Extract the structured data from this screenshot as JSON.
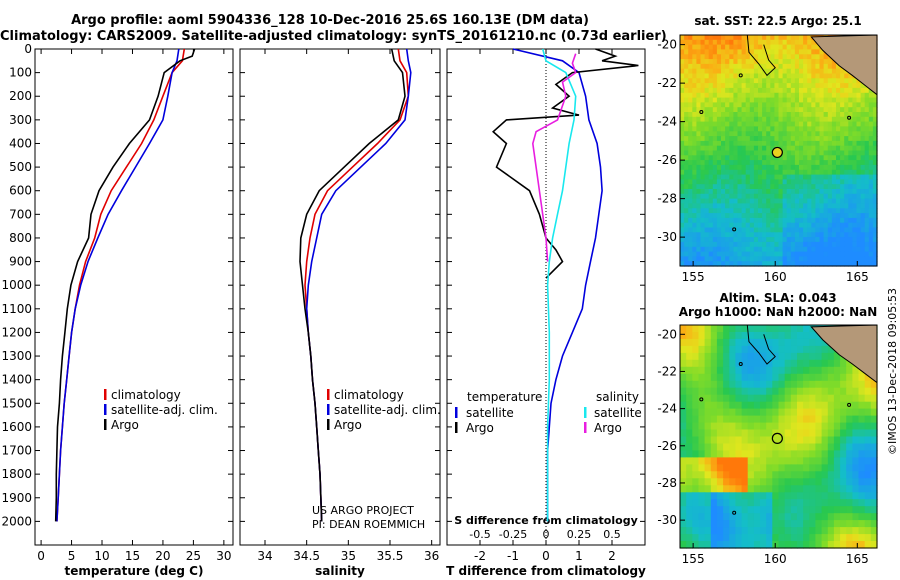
{
  "header": {
    "title_line1": "Argo profile: aoml 5904336_128 10-Dec-2016 25.6S 160.13E (DM data)",
    "title_line2": "Climatology: CARS2009. Satellite-adjusted climatology: synTS_20161210.nc (0.73d earlier)"
  },
  "credit": {
    "line1": "US ARGO PROJECT",
    "line2": "PI: DEAN ROEMMICH"
  },
  "timestamp": "©IMOS 13-Dec-2018 09:05:53",
  "colors": {
    "red": "#e00000",
    "blue": "#0000dd",
    "black": "#000000",
    "cyan": "#19e8ee",
    "magenta": "#e81ee0"
  },
  "chart_data": [
    {
      "type": "line",
      "name": "temperature-profile",
      "xlabel": "temperature (deg C)",
      "xlim": [
        -1,
        31.5
      ],
      "xticks": [
        0,
        5,
        10,
        15,
        20,
        25,
        30
      ],
      "ylim": [
        2100,
        0
      ],
      "yticks": [
        0,
        100,
        200,
        300,
        400,
        500,
        600,
        700,
        800,
        900,
        1000,
        1100,
        1200,
        1300,
        1400,
        1500,
        1600,
        1700,
        1800,
        1900,
        2000
      ],
      "legend": [
        "climatology",
        "satellite-adj. clim.",
        "Argo"
      ],
      "series": [
        {
          "name": "climatology",
          "color": "#e00000",
          "x": [
            23.5,
            23.2,
            21.5,
            20,
            18.5,
            16.5,
            14,
            11.5,
            9.8,
            8.8,
            7.3,
            6.3,
            5.6,
            5,
            4.6,
            4.2,
            3.8,
            3.5,
            3.2,
            3,
            2.8,
            2.6
          ],
          "y": [
            0,
            50,
            100,
            200,
            300,
            400,
            500,
            600,
            700,
            800,
            900,
            1000,
            1100,
            1200,
            1300,
            1400,
            1500,
            1600,
            1700,
            1800,
            1900,
            2000
          ]
        },
        {
          "name": "satellite-adj. clim.",
          "color": "#0000dd",
          "x": [
            22.6,
            22.3,
            21.5,
            20.8,
            20,
            17.8,
            15.5,
            13.2,
            11,
            9.3,
            7.7,
            6.5,
            5.6,
            5,
            4.6,
            4.2,
            3.8,
            3.5,
            3.2,
            3,
            2.8,
            2.6
          ],
          "y": [
            0,
            50,
            100,
            200,
            300,
            400,
            500,
            600,
            700,
            800,
            900,
            1000,
            1100,
            1200,
            1300,
            1400,
            1500,
            1600,
            1700,
            1800,
            1900,
            2000
          ]
        },
        {
          "name": "Argo",
          "color": "#000000",
          "x": [
            25.2,
            24.8,
            22.8,
            20.2,
            19.2,
            17.8,
            14.5,
            11.8,
            9.5,
            8.2,
            7.8,
            6,
            4.9,
            4.3,
            3.9,
            3.5,
            3.2,
            3,
            2.7,
            2.6,
            2.5,
            2.5,
            2.4
          ],
          "y": [
            0,
            30,
            50,
            100,
            200,
            300,
            400,
            500,
            600,
            700,
            800,
            900,
            1000,
            1100,
            1200,
            1300,
            1400,
            1500,
            1600,
            1700,
            1800,
            1900,
            2000
          ]
        }
      ]
    },
    {
      "type": "line",
      "name": "salinity-profile",
      "xlabel": "salinity",
      "xlim": [
        33.7,
        36.1
      ],
      "xticks": [
        34,
        34.5,
        35,
        35.5,
        36
      ],
      "ylim": [
        2100,
        0
      ],
      "legend": [
        "climatology",
        "satellite-adj. clim.",
        "Argo"
      ],
      "series": [
        {
          "name": "climatology",
          "color": "#e00000",
          "x": [
            35.6,
            35.62,
            35.7,
            35.72,
            35.62,
            35.35,
            35.05,
            34.75,
            34.6,
            34.54,
            34.5,
            34.48,
            34.5,
            34.52,
            34.55,
            34.57,
            34.6,
            34.62,
            34.64,
            34.66,
            34.68
          ],
          "y": [
            0,
            50,
            100,
            200,
            300,
            400,
            500,
            600,
            700,
            800,
            900,
            1000,
            1100,
            1200,
            1300,
            1400,
            1500,
            1600,
            1700,
            1800,
            2000
          ]
        },
        {
          "name": "satellite-adj. clim.",
          "color": "#0000dd",
          "x": [
            35.7,
            35.72,
            35.75,
            35.72,
            35.68,
            35.45,
            35.15,
            34.85,
            34.68,
            34.62,
            34.56,
            34.52,
            34.5,
            34.52,
            34.55,
            34.57,
            34.6,
            34.62,
            34.64,
            34.66,
            34.68
          ],
          "y": [
            0,
            50,
            100,
            200,
            300,
            400,
            500,
            600,
            700,
            800,
            900,
            1000,
            1100,
            1200,
            1300,
            1400,
            1500,
            1600,
            1700,
            1800,
            2000
          ]
        },
        {
          "name": "Argo",
          "color": "#000000",
          "x": [
            35.52,
            35.55,
            35.65,
            35.68,
            35.6,
            35.25,
            34.95,
            34.65,
            34.5,
            34.43,
            34.42,
            34.45,
            34.48,
            34.52,
            34.55,
            34.57,
            34.6,
            34.62,
            34.64,
            34.66,
            34.68
          ],
          "y": [
            0,
            50,
            100,
            200,
            300,
            400,
            500,
            600,
            700,
            800,
            900,
            1000,
            1100,
            1200,
            1300,
            1400,
            1500,
            1600,
            1700,
            1800,
            2000
          ]
        }
      ]
    },
    {
      "type": "line",
      "name": "difference-profile",
      "xlabel": "T difference from climatology",
      "xlim": [
        -3,
        3
      ],
      "xticks": [
        -2,
        -1,
        0,
        1,
        2
      ],
      "secondary_xlabel": "S difference from climatology",
      "secondary_xticks": [
        "-0.5",
        "-0.25",
        "0",
        "0.25",
        "0.5"
      ],
      "secondary_xtick_positions": [
        -2,
        -1,
        0,
        1,
        2
      ],
      "ylim": [
        2100,
        0
      ],
      "legend_groups": [
        {
          "title": "temperature",
          "items": [
            "satellite",
            "Argo"
          ]
        },
        {
          "title": "salinity",
          "items": [
            "satellite",
            "Argo"
          ]
        }
      ],
      "series": [
        {
          "name": "temperature satellite",
          "color": "#0000dd",
          "x": [
            -1,
            0.5,
            1,
            1.2,
            1.3,
            1.55,
            1.65,
            1.7,
            1.6,
            1.5,
            1.35,
            1.2,
            1.1,
            0.8,
            0.5,
            0.3,
            0.15,
            0.1,
            0.05,
            0.05,
            0.05,
            0.05
          ],
          "y": [
            0,
            50,
            100,
            200,
            300,
            400,
            500,
            600,
            700,
            800,
            900,
            1000,
            1100,
            1200,
            1300,
            1400,
            1500,
            1600,
            1700,
            1800,
            1900,
            2000
          ]
        },
        {
          "name": "temperature Argo",
          "color": "#000000",
          "x": [
            1.5,
            2.1,
            1.7,
            2.8,
            0.8,
            0.3,
            0.7,
            0.2,
            1,
            -1.2,
            -1.6,
            -1.2,
            -1.5,
            -0.5,
            -0.2,
            0,
            0.3,
            0.5,
            0
          ],
          "y": [
            0,
            30,
            50,
            70,
            100,
            150,
            200,
            250,
            280,
            300,
            350,
            400,
            500,
            600,
            700,
            800,
            850,
            900,
            970
          ]
        },
        {
          "name": "salinity satellite",
          "color": "#19e8ee",
          "x": [
            -0.1,
            0,
            0.6,
            0.9,
            0.85,
            0.7,
            0.6,
            0.5,
            0.35,
            0.2,
            0.1,
            0.05,
            0.1,
            0.1,
            0.05,
            0.05,
            0.05,
            0.05
          ],
          "y": [
            0,
            50,
            100,
            200,
            300,
            400,
            500,
            600,
            700,
            800,
            900,
            1000,
            1200,
            1400,
            1600,
            1700,
            1800,
            2000
          ]
        },
        {
          "name": "salinity Argo",
          "color": "#e81ee0",
          "x": [
            0.9,
            0.8,
            0.9,
            0.5,
            0.6,
            0.4,
            0.35,
            -0.3,
            -0.4,
            -0.3,
            -0.2,
            -0.1,
            0,
            0.05
          ],
          "y": [
            20,
            60,
            100,
            140,
            200,
            280,
            300,
            350,
            400,
            500,
            600,
            700,
            800,
            900
          ]
        }
      ]
    },
    {
      "type": "heatmap",
      "name": "sst-map",
      "title": "sat. SST: 22.5 Argo: 25.1",
      "xlim": [
        154.2,
        166.2
      ],
      "ylim": [
        -31.5,
        -19.5
      ],
      "xticks": [
        155,
        160,
        165
      ],
      "yticks": [
        -20,
        -22,
        -24,
        -26,
        -28,
        -30
      ],
      "marker": {
        "lon": 160.13,
        "lat": -25.6
      }
    },
    {
      "type": "heatmap",
      "name": "sla-map",
      "title_line1": "Altim. SLA: 0.043",
      "title_line2": "Argo h1000: NaN h2000: NaN",
      "xlim": [
        154.2,
        166.2
      ],
      "ylim": [
        -31.5,
        -19.5
      ],
      "xticks": [
        155,
        160,
        165
      ],
      "yticks": [
        -20,
        -22,
        -24,
        -26,
        -28,
        -30
      ],
      "marker": {
        "lon": 160.13,
        "lat": -25.6
      }
    }
  ]
}
